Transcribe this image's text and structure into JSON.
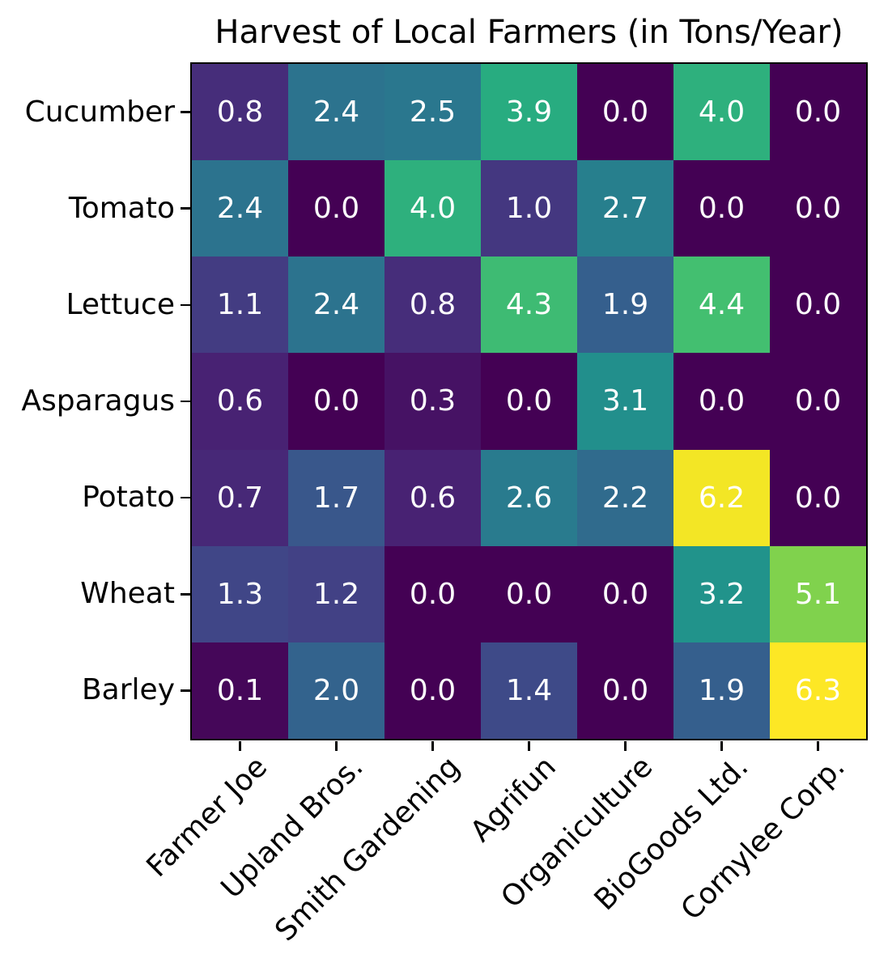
{
  "title": "Harvest of Local Farmers (in Tons/Year)",
  "chart_data": {
    "type": "heatmap",
    "title": "Harvest of Local Farmers (in Tons/Year)",
    "rows": [
      "Cucumber",
      "Tomato",
      "Lettuce",
      "Asparagus",
      "Potato",
      "Wheat",
      "Barley"
    ],
    "columns": [
      "Farmer Joe",
      "Upland Bros.",
      "Smith Gardening",
      "Agrifun",
      "Organiculture",
      "BioGoods Ltd.",
      "Cornylee Corp."
    ],
    "values": [
      [
        0.8,
        2.4,
        2.5,
        3.9,
        0.0,
        4.0,
        0.0
      ],
      [
        2.4,
        0.0,
        4.0,
        1.0,
        2.7,
        0.0,
        0.0
      ],
      [
        1.1,
        2.4,
        0.8,
        4.3,
        1.9,
        4.4,
        0.0
      ],
      [
        0.6,
        0.0,
        0.3,
        0.0,
        3.1,
        0.0,
        0.0
      ],
      [
        0.7,
        1.7,
        0.6,
        2.6,
        2.2,
        6.2,
        0.0
      ],
      [
        1.3,
        1.2,
        0.0,
        0.0,
        0.0,
        3.2,
        5.1
      ],
      [
        0.1,
        2.0,
        0.0,
        1.4,
        0.0,
        1.9,
        6.3
      ]
    ],
    "value_decimals": 1,
    "vmin": 0.0,
    "vmax": 6.3,
    "colormap": {
      "name": "viridis",
      "stops": [
        "#440154",
        "#482475",
        "#414487",
        "#355f8d",
        "#2a788e",
        "#21918c",
        "#22a884",
        "#44bf70",
        "#7ad151",
        "#bddf26",
        "#fde725"
      ]
    },
    "annotation_color": "#ffffff",
    "axis_color": "#000000",
    "background_color": "#ffffff",
    "grid": false,
    "legend": false,
    "x_tick_rotation_deg": 45
  }
}
